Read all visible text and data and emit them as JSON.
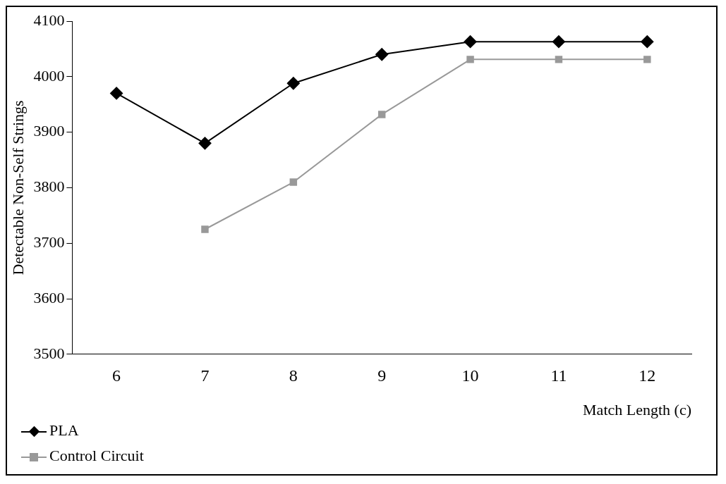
{
  "chart_data": {
    "type": "line",
    "categories": [
      "6",
      "7",
      "8",
      "9",
      "10",
      "11",
      "12"
    ],
    "series": [
      {
        "name": "PLA",
        "color": "#000000",
        "marker": "diamond",
        "values": [
          3970,
          3880,
          3988,
          4040,
          4063,
          4063,
          4063
        ]
      },
      {
        "name": "Control Circuit",
        "color": "#999999",
        "marker": "square",
        "values": [
          null,
          3725,
          3810,
          3932,
          4031,
          4031,
          4031
        ]
      }
    ],
    "ylabel": "Detectable Non-Self Strings",
    "xlabel": "Match Length (c)",
    "ylim": [
      3500,
      4100
    ],
    "yticks": [
      3500,
      3600,
      3700,
      3800,
      3900,
      4000,
      4100
    ],
    "grid": false,
    "legend": "bottom left"
  }
}
